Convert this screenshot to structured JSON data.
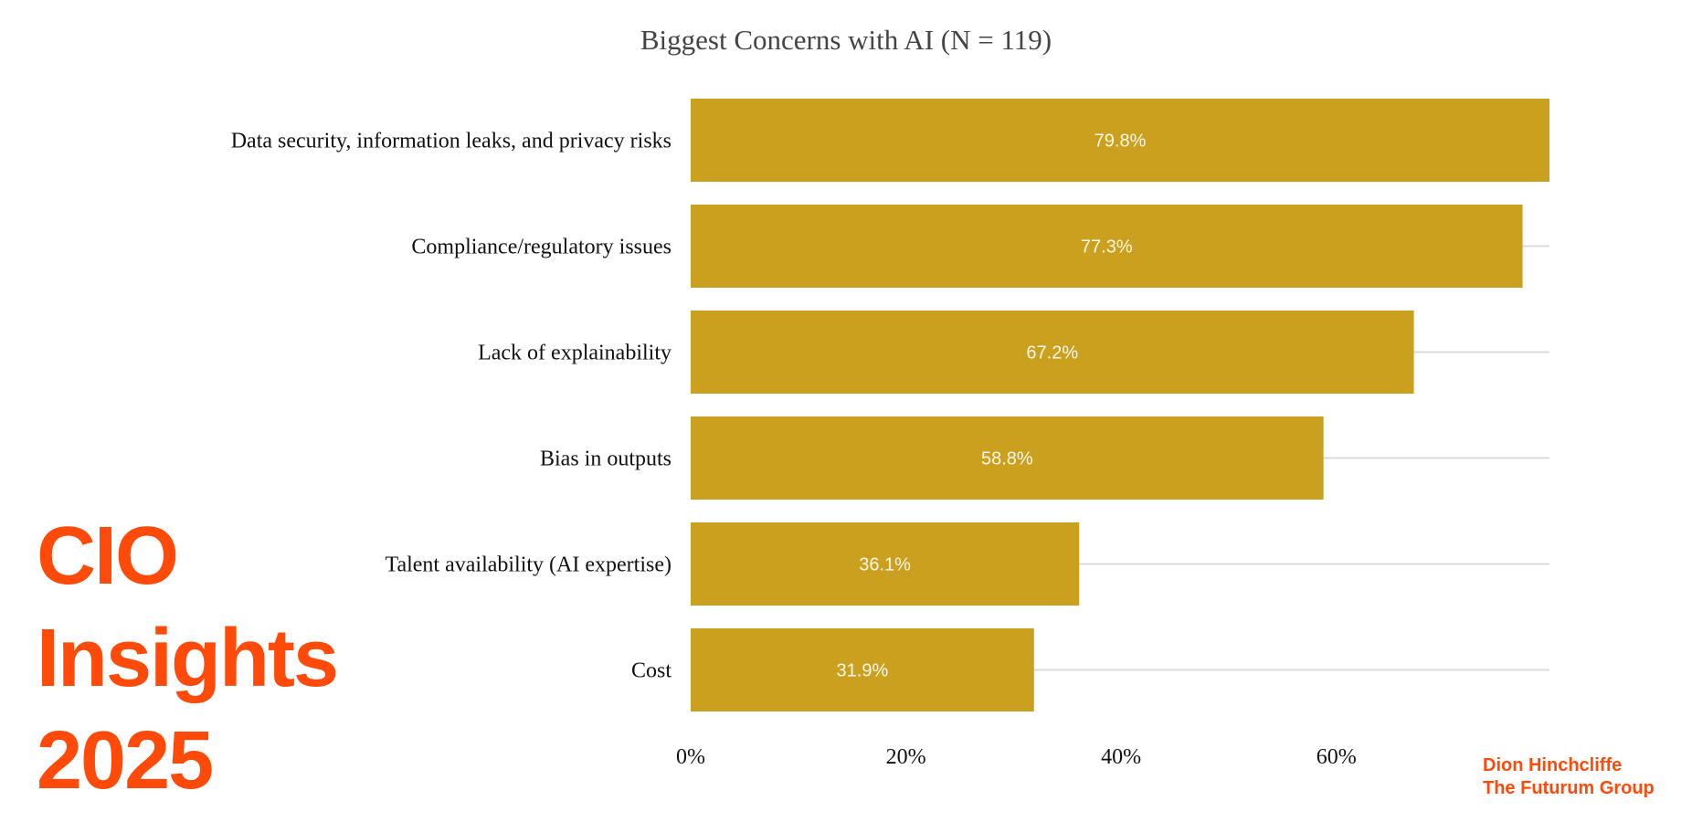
{
  "colors": {
    "bar": "#CAA01E",
    "brand": "#FF4A0A",
    "gridline": "#D9D9D9",
    "title": "#444444"
  },
  "branding": {
    "line1": "CIO",
    "line2": "Insights",
    "line3": "2025"
  },
  "attribution": {
    "author": "Dion Hinchcliffe",
    "organization": "The Futurum Group"
  },
  "chart_data": {
    "type": "bar",
    "orientation": "horizontal",
    "title": "Biggest Concerns with AI (N = 119)",
    "xlabel": "",
    "ylabel": "",
    "categories": [
      "Data security, information leaks, and privacy risks",
      "Compliance/regulatory issues",
      "Lack of explainability",
      "Bias in outputs",
      "Talent availability (AI expertise)",
      "Cost"
    ],
    "values": [
      79.8,
      77.3,
      67.2,
      58.8,
      36.1,
      31.9
    ],
    "value_labels": [
      "79.8%",
      "77.3%",
      "67.2%",
      "58.8%",
      "36.1%",
      "31.9%"
    ],
    "xlim": [
      0,
      79.8
    ],
    "xticks": [
      0,
      20,
      40,
      60
    ],
    "xtick_labels": [
      "0%",
      "20%",
      "40%",
      "60%"
    ],
    "grid": true,
    "legend": "none"
  }
}
